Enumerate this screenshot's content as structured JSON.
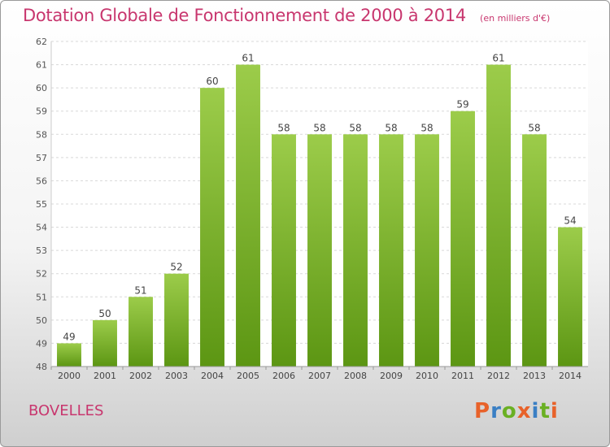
{
  "header": {
    "title": "Dotation Globale de Fonctionnement de 2000 à 2014",
    "unit": "(en milliers d'€)"
  },
  "footer": {
    "commune": "BOVELLES",
    "brand": "Proxiti"
  },
  "colors": {
    "title": "#c8366e",
    "bar_top": "#9ccc4a",
    "bar_bottom": "#5c9613",
    "brand_letters": [
      "#e8622a",
      "#3a7fc4",
      "#6ab023",
      "#e8622a",
      "#3a7fc4",
      "#6ab023",
      "#e8622a"
    ]
  },
  "chart_data": {
    "type": "bar",
    "categories": [
      "2000",
      "2001",
      "2002",
      "2003",
      "2004",
      "2005",
      "2006",
      "2007",
      "2008",
      "2009",
      "2010",
      "2011",
      "2012",
      "2013",
      "2014"
    ],
    "values": [
      49,
      50,
      51,
      52,
      60,
      61,
      58,
      58,
      58,
      58,
      58,
      59,
      61,
      58,
      54
    ],
    "ylim": [
      48,
      62
    ],
    "yticks": [
      48,
      49,
      50,
      51,
      52,
      53,
      54,
      55,
      56,
      57,
      58,
      59,
      60,
      61,
      62
    ],
    "grid": true,
    "data_labels": true
  }
}
